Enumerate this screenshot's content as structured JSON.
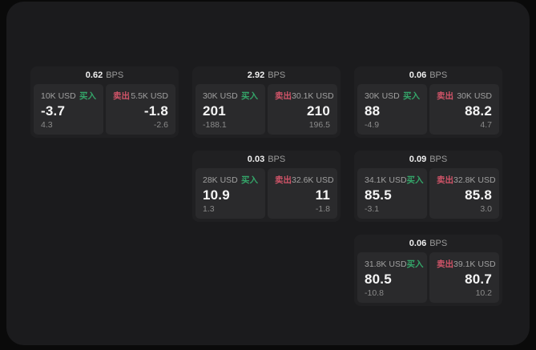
{
  "labels": {
    "buy": "买入",
    "sell": "卖出",
    "bps_unit": "BPS"
  },
  "colors": {
    "buy": "#34a569",
    "sell": "#d05468",
    "panel_bg": "#1b1b1d",
    "card_bg": "#202022",
    "tile_bg": "#2a2a2c"
  },
  "cards": [
    {
      "row": 1,
      "col": 1,
      "bps": "0.62",
      "buy": {
        "notional": "10K USD",
        "value": "-3.7",
        "sub": "4.3"
      },
      "sell": {
        "notional": "5.5K USD",
        "value": "-1.8",
        "sub": "-2.6"
      }
    },
    {
      "row": 1,
      "col": 2,
      "bps": "2.92",
      "buy": {
        "notional": "30K USD",
        "value": "201",
        "sub": "-188.1"
      },
      "sell": {
        "notional": "30.1K USD",
        "value": "210",
        "sub": "196.5"
      }
    },
    {
      "row": 1,
      "col": 3,
      "bps": "0.06",
      "buy": {
        "notional": "30K USD",
        "value": "88",
        "sub": "-4.9"
      },
      "sell": {
        "notional": "30K USD",
        "value": "88.2",
        "sub": "4.7"
      }
    },
    {
      "row": 2,
      "col": 2,
      "bps": "0.03",
      "buy": {
        "notional": "28K USD",
        "value": "10.9",
        "sub": "1.3"
      },
      "sell": {
        "notional": "32.6K USD",
        "value": "11",
        "sub": "-1.8"
      }
    },
    {
      "row": 2,
      "col": 3,
      "bps": "0.09",
      "buy": {
        "notional": "34.1K USD",
        "value": "85.5",
        "sub": "-3.1"
      },
      "sell": {
        "notional": "32.8K USD",
        "value": "85.8",
        "sub": "3.0"
      }
    },
    {
      "row": 3,
      "col": 3,
      "bps": "0.06",
      "buy": {
        "notional": "31.8K USD",
        "value": "80.5",
        "sub": "-10.8"
      },
      "sell": {
        "notional": "39.1K USD",
        "value": "80.7",
        "sub": "10.2"
      }
    }
  ]
}
